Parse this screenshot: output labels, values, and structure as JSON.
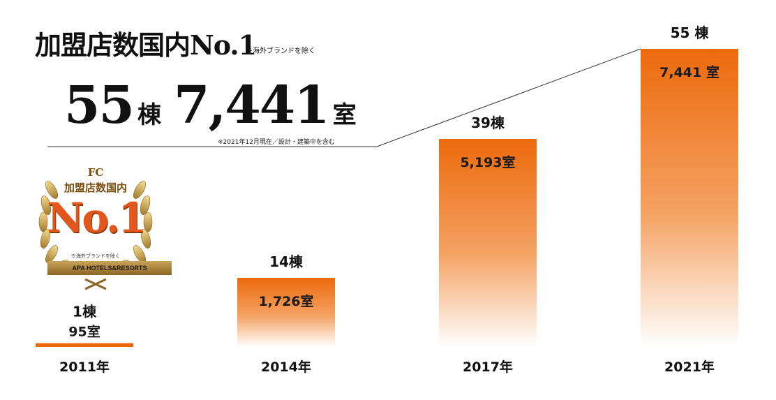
{
  "header": {
    "title": "加盟店数国内No.1",
    "note": "※海外ブランドを除く"
  },
  "summary": {
    "buildings": "55",
    "buildings_unit": "棟",
    "rooms": "7,441",
    "rooms_unit": "室",
    "note": "※2021年12月現在／設計・建築中を含む"
  },
  "badge": {
    "line1": "FC",
    "line2": "加盟店数国内",
    "rank": "No.1",
    "note": "※海外ブランドを除く",
    "ribbon": "APA HOTELS&RESORTS"
  },
  "colors": {
    "bar_top": "#ec6a0c",
    "bar_bottom": "#ffffff",
    "gold": "#c9a24e"
  },
  "chart_data": {
    "type": "bar",
    "categories": [
      "2011年",
      "2014年",
      "2017年",
      "2021年"
    ],
    "series": [
      {
        "values": [
          95,
          1726,
          5193,
          7441
        ]
      }
    ],
    "buildings": [
      1,
      14,
      39,
      55
    ],
    "bar_labels": [
      "95室",
      "1,726室",
      "5,193室",
      "7,441 室"
    ],
    "building_labels": [
      "1棟",
      "14棟",
      "39棟",
      "55 棟"
    ],
    "ylim": [
      0,
      7441
    ],
    "grid": false,
    "legend": "none"
  }
}
